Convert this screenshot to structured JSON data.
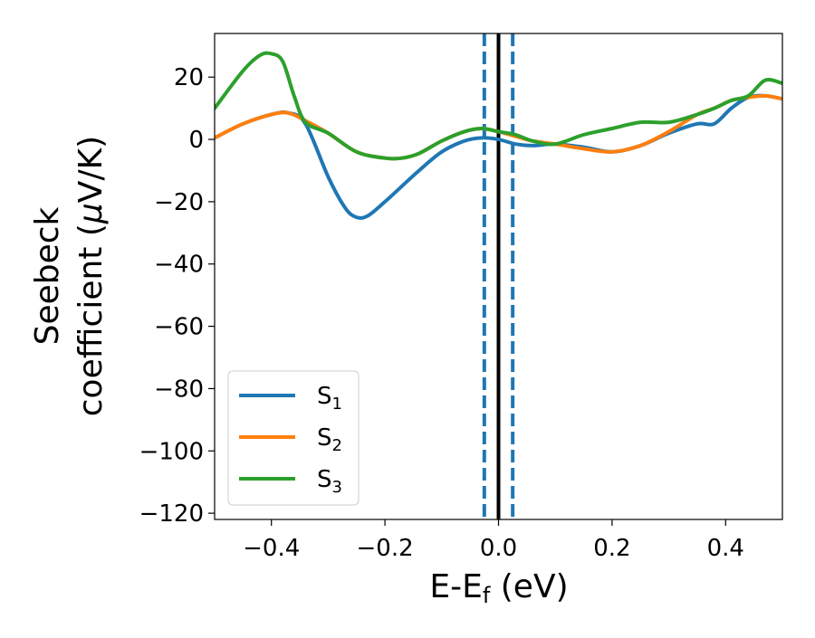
{
  "chart_data": {
    "type": "line",
    "title": "",
    "xlabel": {
      "main": "E-E",
      "sub": "f",
      "unit": " (eV)"
    },
    "ylabel": {
      "line1": "Seebeck",
      "line2_prefix": "coefficient  (",
      "mu": "μ",
      "line2_suffix": "V/K)"
    },
    "xlim": [
      -0.5,
      0.5
    ],
    "ylim": [
      -122,
      34
    ],
    "xticks": [
      -0.4,
      -0.2,
      0.0,
      0.2,
      0.4
    ],
    "xtick_labels": [
      "−0.4",
      "−0.2",
      "0.0",
      "0.2",
      "0.4"
    ],
    "yticks": [
      20,
      0,
      -20,
      -40,
      -60,
      -80,
      -100,
      -120
    ],
    "ytick_labels": [
      "20",
      "0",
      "−20",
      "−40",
      "−60",
      "−80",
      "−100",
      "−120"
    ],
    "grid": false,
    "legend_position": "lower-left",
    "vlines": [
      {
        "x": 0.0,
        "color": "#000000",
        "style": "solid"
      },
      {
        "x": -0.025,
        "color": "#1f77b4",
        "style": "dashed"
      },
      {
        "x": 0.025,
        "color": "#1f77b4",
        "style": "dashed"
      }
    ],
    "series": [
      {
        "name": "S",
        "sub": "1",
        "color": "#1f77b4",
        "x": [
          -0.5,
          -0.45,
          -0.4,
          -0.37,
          -0.34,
          -0.3,
          -0.27,
          -0.25,
          -0.23,
          -0.2,
          -0.17,
          -0.14,
          -0.1,
          -0.06,
          -0.03,
          0.0,
          0.03,
          0.06,
          0.1,
          0.15,
          0.2,
          0.25,
          0.3,
          0.35,
          0.38,
          0.41,
          0.44,
          0.47,
          0.5
        ],
        "values": [
          0.5,
          5,
          8,
          8.5,
          5,
          -12,
          -22,
          -25,
          -24.5,
          -20,
          -15,
          -10,
          -4,
          -0.5,
          0.5,
          0,
          -1.5,
          -2,
          -1.5,
          -2.5,
          -4,
          -2,
          2,
          5,
          5,
          10,
          13.5,
          14,
          13
        ]
      },
      {
        "name": "S",
        "sub": "2",
        "color": "#ff7f0e",
        "x": [
          -0.5,
          -0.45,
          -0.4,
          -0.37,
          -0.34,
          -0.3,
          -0.25,
          -0.2,
          -0.17,
          -0.14,
          -0.1,
          -0.06,
          -0.03,
          0.0,
          0.03,
          0.06,
          0.1,
          0.15,
          0.2,
          0.25,
          0.3,
          0.35,
          0.38,
          0.41,
          0.44,
          0.47,
          0.5
        ],
        "values": [
          0.5,
          5,
          8,
          8.5,
          6,
          2,
          -4,
          -6,
          -6,
          -4.5,
          -0.5,
          2.5,
          3.5,
          2.5,
          1,
          -0.5,
          -1.5,
          -3,
          -4,
          -2,
          2.5,
          8,
          10,
          12.5,
          13.5,
          14,
          13
        ]
      },
      {
        "name": "S",
        "sub": "3",
        "color": "#2ca02c",
        "x": [
          -0.5,
          -0.45,
          -0.42,
          -0.4,
          -0.38,
          -0.36,
          -0.34,
          -0.3,
          -0.25,
          -0.2,
          -0.17,
          -0.14,
          -0.1,
          -0.06,
          -0.03,
          0.0,
          0.03,
          0.06,
          0.1,
          0.15,
          0.2,
          0.25,
          0.3,
          0.35,
          0.38,
          0.41,
          0.44,
          0.47,
          0.5
        ],
        "values": [
          10,
          22,
          27,
          27.5,
          25,
          14,
          5.5,
          2,
          -4,
          -6,
          -6,
          -4.5,
          -0.5,
          2.5,
          3.5,
          2.5,
          1.5,
          -0.5,
          -1.5,
          1.5,
          3.5,
          5.5,
          5.5,
          8,
          10,
          12.5,
          14,
          19,
          18
        ]
      }
    ]
  }
}
